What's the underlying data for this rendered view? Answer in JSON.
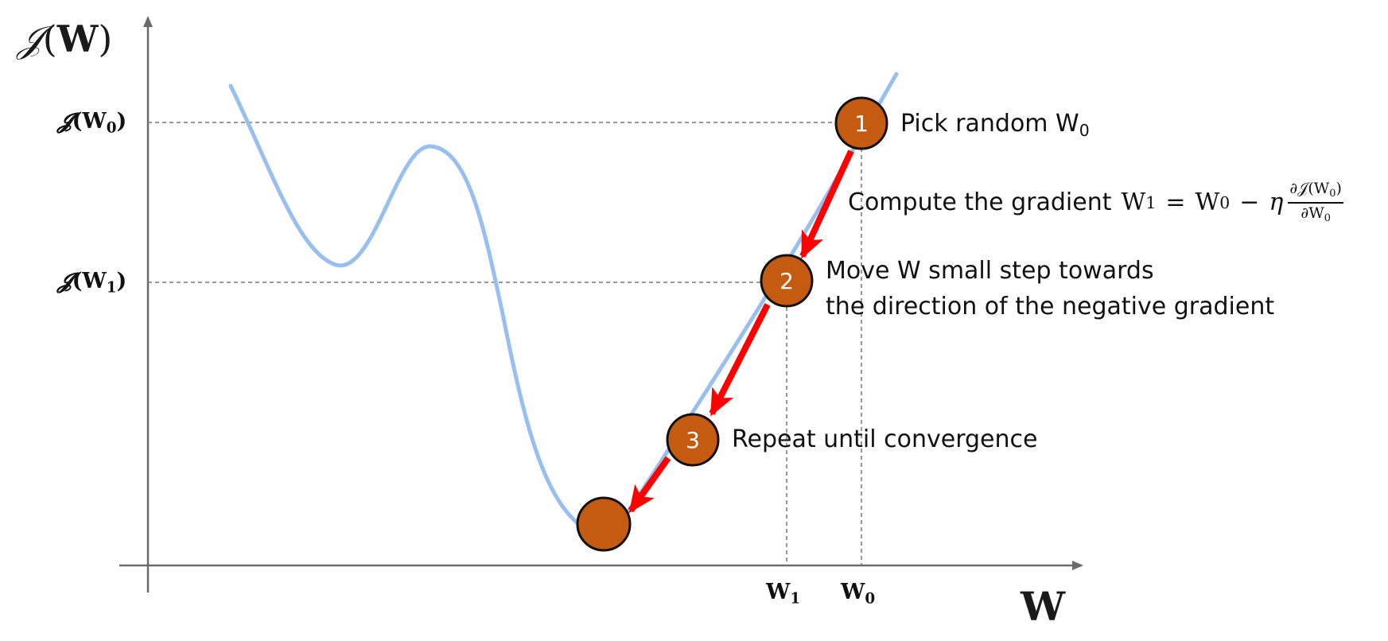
{
  "axes": {
    "y_title": {
      "fn": "𝒥",
      "var": "W"
    },
    "x_title": "W"
  },
  "ticks": {
    "y0": {
      "fn": "𝓙",
      "base": "W",
      "sub": "0"
    },
    "y1": {
      "fn": "𝓙",
      "base": "W",
      "sub": "1"
    },
    "x1": {
      "base": "W",
      "sub": "1"
    },
    "x0": {
      "base": "W",
      "sub": "0"
    }
  },
  "steps": [
    {
      "number": "1",
      "text": "Pick random W",
      "sub": "0"
    },
    {
      "number": "2",
      "line1": "Move W small step towards",
      "line2": "the direction of the negative gradient"
    },
    {
      "number": "3",
      "text": "Repeat until convergence"
    }
  ],
  "gradient": {
    "text": "Compute the gradient",
    "lhs": "W",
    "lhs_sub": "1",
    "equals": "=",
    "rhs": "W",
    "rhs_sub": "0",
    "minus": "−",
    "eta": "η",
    "num": "∂𝒥(W",
    "num_sub": "0",
    "num_close": ")",
    "den": "∂W",
    "den_sub": "0"
  },
  "colors": {
    "curve": "#99bff0",
    "arrow": "#ff0000",
    "circle_fill": "#c55a11",
    "circle_stroke": "#111111",
    "axis": "#6b6b6b",
    "guide": "#777777"
  }
}
